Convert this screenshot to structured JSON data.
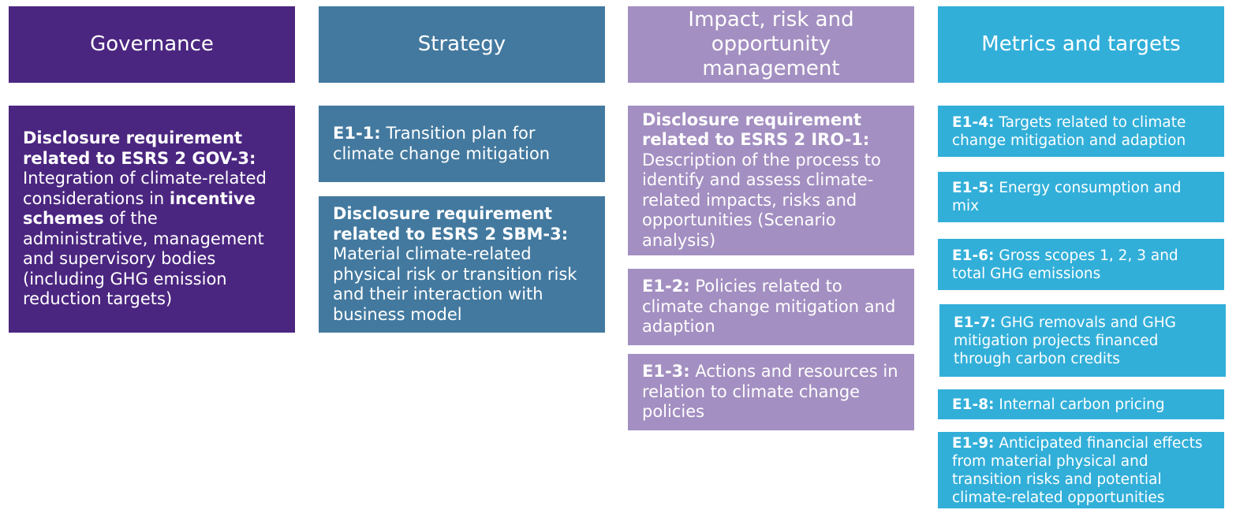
{
  "colors": {
    "governance": "#4b2680",
    "strategy": "#43799f",
    "iro": "#a38fc1",
    "metrics": "#32afd9"
  },
  "headers": {
    "governance": "Governance",
    "strategy": "Strategy",
    "iro": "Impact, risk and opportunity management",
    "metrics": "Metrics and targets"
  },
  "governance": {
    "gov3": {
      "bold1": "Disclosure requirement related to ESRS 2 GOV-3:",
      "text1": "Integration of climate-related considerations in",
      "bold2": "incentive schemes",
      "text2": "of the administrative, management and supervisory bodies (including GHG emission reduction targets)"
    }
  },
  "strategy": {
    "e1_1": {
      "code": "E1-1:",
      "text": "Transition plan for climate change mitigation"
    },
    "sbm3": {
      "bold": "Disclosure requirement related to ESRS 2 SBM-3:",
      "text": "Material climate-related physical risk or transition risk and their interaction with business model"
    }
  },
  "iro": {
    "iro1": {
      "bold": "Disclosure requirement related to ESRS 2 IRO-1:",
      "text": "Description of the process to identify and assess climate-related impacts, risks and opportunities (Scenario analysis)"
    },
    "e1_2": {
      "code": "E1-2:",
      "text": "Policies related to climate change mitigation and adaption"
    },
    "e1_3": {
      "code": "E1-3:",
      "text": "Actions and resources in relation to climate change policies"
    }
  },
  "metrics": {
    "e1_4": {
      "code": "E1-4:",
      "text": "Targets related to climate change mitigation and adaption"
    },
    "e1_5": {
      "code": "E1-5:",
      "text": "Energy consumption and mix"
    },
    "e1_6": {
      "code": "E1-6:",
      "text": "Gross scopes 1, 2, 3 and total GHG emissions"
    },
    "e1_7": {
      "code": "E1-7:",
      "text": "GHG removals and GHG mitigation projects financed through carbon credits"
    },
    "e1_8": {
      "code": "E1-8:",
      "text": "Internal carbon pricing"
    },
    "e1_9": {
      "code": "E1-9:",
      "text": "Anticipated financial effects from material physical and transition risks and potential climate-related opportunities"
    }
  }
}
